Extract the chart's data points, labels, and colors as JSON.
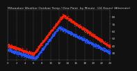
{
  "title": "Milwaukee Weather Outdoor Temp / Dew Point  by Minute  (24 Hours) (Alternate)",
  "title_fontsize": 3.2,
  "bg_color": "#111111",
  "plot_bg_color": "#111111",
  "grid_color": "#555555",
  "temp_color": "#ff2200",
  "dew_color": "#2255ff",
  "ylim": [
    20,
    90
  ],
  "xlim": [
    0,
    1440
  ],
  "yticks": [
    30,
    40,
    50,
    60,
    70,
    80
  ],
  "xticks": [
    0,
    120,
    240,
    360,
    480,
    600,
    720,
    840,
    960,
    1080,
    1200,
    1320,
    1440
  ],
  "xtick_labels": [
    "0",
    "2",
    "4",
    "6",
    "8",
    "10",
    "12",
    "14",
    "16",
    "18",
    "20",
    "22",
    "24"
  ],
  "ytick_fontsize": 3.0,
  "xtick_fontsize": 2.8,
  "marker_size": 0.9,
  "temp_peak": 82,
  "temp_peak_minute": 780,
  "temp_min": 28,
  "temp_min_minute": 360,
  "temp_start": 40,
  "temp_end": 38,
  "dew_peak": 65,
  "dew_peak_minute": 720,
  "dew_min": 22,
  "dew_min_minute": 390,
  "dew_start": 34,
  "dew_end": 30
}
